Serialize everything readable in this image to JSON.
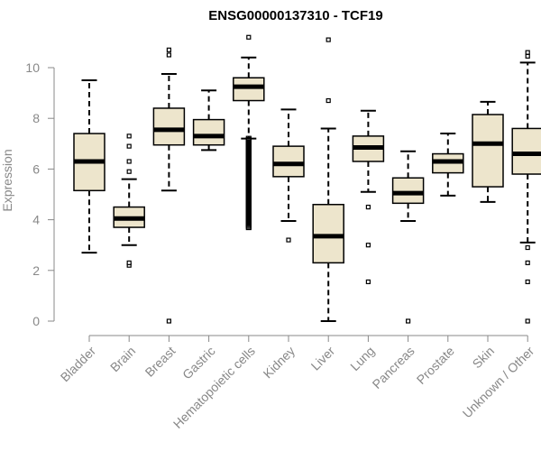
{
  "chart_data": {
    "type": "boxplot",
    "title": "ENSG00000137310 - TCF19",
    "xlabel": "",
    "ylabel": "Expression",
    "ylim": [
      0,
      11.2
    ],
    "yticks": [
      0,
      2,
      4,
      6,
      8,
      10
    ],
    "colors": {
      "box_fill": "#ede5cc",
      "line": "#000000",
      "axis": "#888888",
      "text": "#888888"
    },
    "categories": [
      "Bladder",
      "Brain",
      "Breast",
      "Gastric",
      "Hematopoietic cells",
      "Kidney",
      "Liver",
      "Lung",
      "Pancreas",
      "Prostate",
      "Skin",
      "Unknown / Other"
    ],
    "boxes": [
      {
        "name": "Bladder",
        "whisker_low": 2.7,
        "q1": 5.15,
        "median": 6.3,
        "q3": 7.4,
        "whisker_high": 9.5,
        "outliers": []
      },
      {
        "name": "Brain",
        "whisker_low": 3.0,
        "q1": 3.7,
        "median": 4.05,
        "q3": 4.5,
        "whisker_high": 5.6,
        "outliers": [
          2.2,
          2.3,
          5.9,
          6.3,
          6.9,
          7.3
        ]
      },
      {
        "name": "Breast",
        "whisker_low": 5.15,
        "q1": 6.95,
        "median": 7.55,
        "q3": 8.4,
        "whisker_high": 9.75,
        "outliers": [
          0.0,
          10.5,
          10.7
        ]
      },
      {
        "name": "Gastric",
        "whisker_low": 6.75,
        "q1": 6.95,
        "median": 7.3,
        "q3": 7.95,
        "whisker_high": 9.1,
        "outliers": []
      },
      {
        "name": "Hematopoietic cells",
        "whisker_low": 7.2,
        "q1": 8.7,
        "median": 9.25,
        "q3": 9.6,
        "whisker_high": 10.4,
        "outliers": [
          11.2
        ],
        "outlier_band": [
          3.7,
          7.2
        ]
      },
      {
        "name": "Kidney",
        "whisker_low": 3.95,
        "q1": 5.7,
        "median": 6.2,
        "q3": 6.9,
        "whisker_high": 8.35,
        "outliers": [
          3.2
        ]
      },
      {
        "name": "Liver",
        "whisker_low": 0.0,
        "q1": 2.3,
        "median": 3.35,
        "q3": 4.6,
        "whisker_high": 7.6,
        "outliers": [
          8.7,
          11.1
        ]
      },
      {
        "name": "Lung",
        "whisker_low": 5.1,
        "q1": 6.3,
        "median": 6.85,
        "q3": 7.3,
        "whisker_high": 8.3,
        "outliers": [
          1.55,
          3.0,
          4.5
        ]
      },
      {
        "name": "Pancreas",
        "whisker_low": 3.95,
        "q1": 4.65,
        "median": 5.05,
        "q3": 5.65,
        "whisker_high": 6.7,
        "outliers": [
          0.0
        ]
      },
      {
        "name": "Prostate",
        "whisker_low": 4.95,
        "q1": 5.85,
        "median": 6.3,
        "q3": 6.6,
        "whisker_high": 7.4,
        "outliers": []
      },
      {
        "name": "Skin",
        "whisker_low": 4.7,
        "q1": 5.3,
        "median": 7.0,
        "q3": 8.15,
        "whisker_high": 8.65,
        "outliers": []
      },
      {
        "name": "Unknown / Other",
        "whisker_low": 3.1,
        "q1": 5.8,
        "median": 6.6,
        "q3": 7.6,
        "whisker_high": 10.2,
        "outliers": [
          0.0,
          1.55,
          2.3,
          2.9,
          10.45,
          10.6
        ]
      }
    ]
  }
}
